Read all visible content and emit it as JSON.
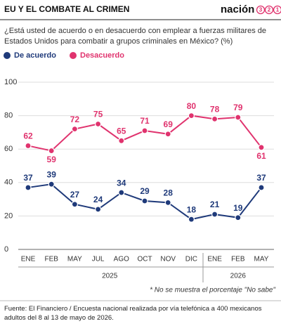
{
  "header": {
    "title": "EU Y EL COMBATE AL CRIMEN",
    "logo": {
      "text": "nación",
      "digits": [
        "3",
        "2",
        "1"
      ]
    }
  },
  "chart_data": {
    "type": "line",
    "subtitle": "¿Está usted de acuerdo o en desacuerdo con emplear a fuerzas militares de Estados Unidos para combatir a grupos criminales en México?  (%)",
    "categories": [
      "ENE",
      "FEB",
      "MAY",
      "JUL",
      "AGO",
      "OCT",
      "NOV",
      "DIC",
      "ENE",
      "FEB",
      "MAY"
    ],
    "years": [
      "2025",
      "2026"
    ],
    "series": [
      {
        "name": "De acuerdo",
        "color": "#1f3a7a",
        "values": [
          37,
          39,
          27,
          24,
          34,
          29,
          28,
          18,
          21,
          19,
          37
        ]
      },
      {
        "name": "Desacuerdo",
        "color": "#e0336e",
        "values": [
          62,
          59,
          72,
          75,
          65,
          71,
          69,
          80,
          78,
          79,
          61
        ]
      }
    ],
    "ylim": [
      0,
      100
    ],
    "yticks": [
      0,
      20,
      40,
      60,
      80,
      100
    ],
    "grid": true,
    "note": "* No se muestra el porcentaje \"No sabe\""
  },
  "footer": {
    "source": "Fuente: El Financiero / Encuesta nacional realizada por vía telefónica a 400 mexicanos adultos del 8 al 13 de mayo de 2026."
  }
}
